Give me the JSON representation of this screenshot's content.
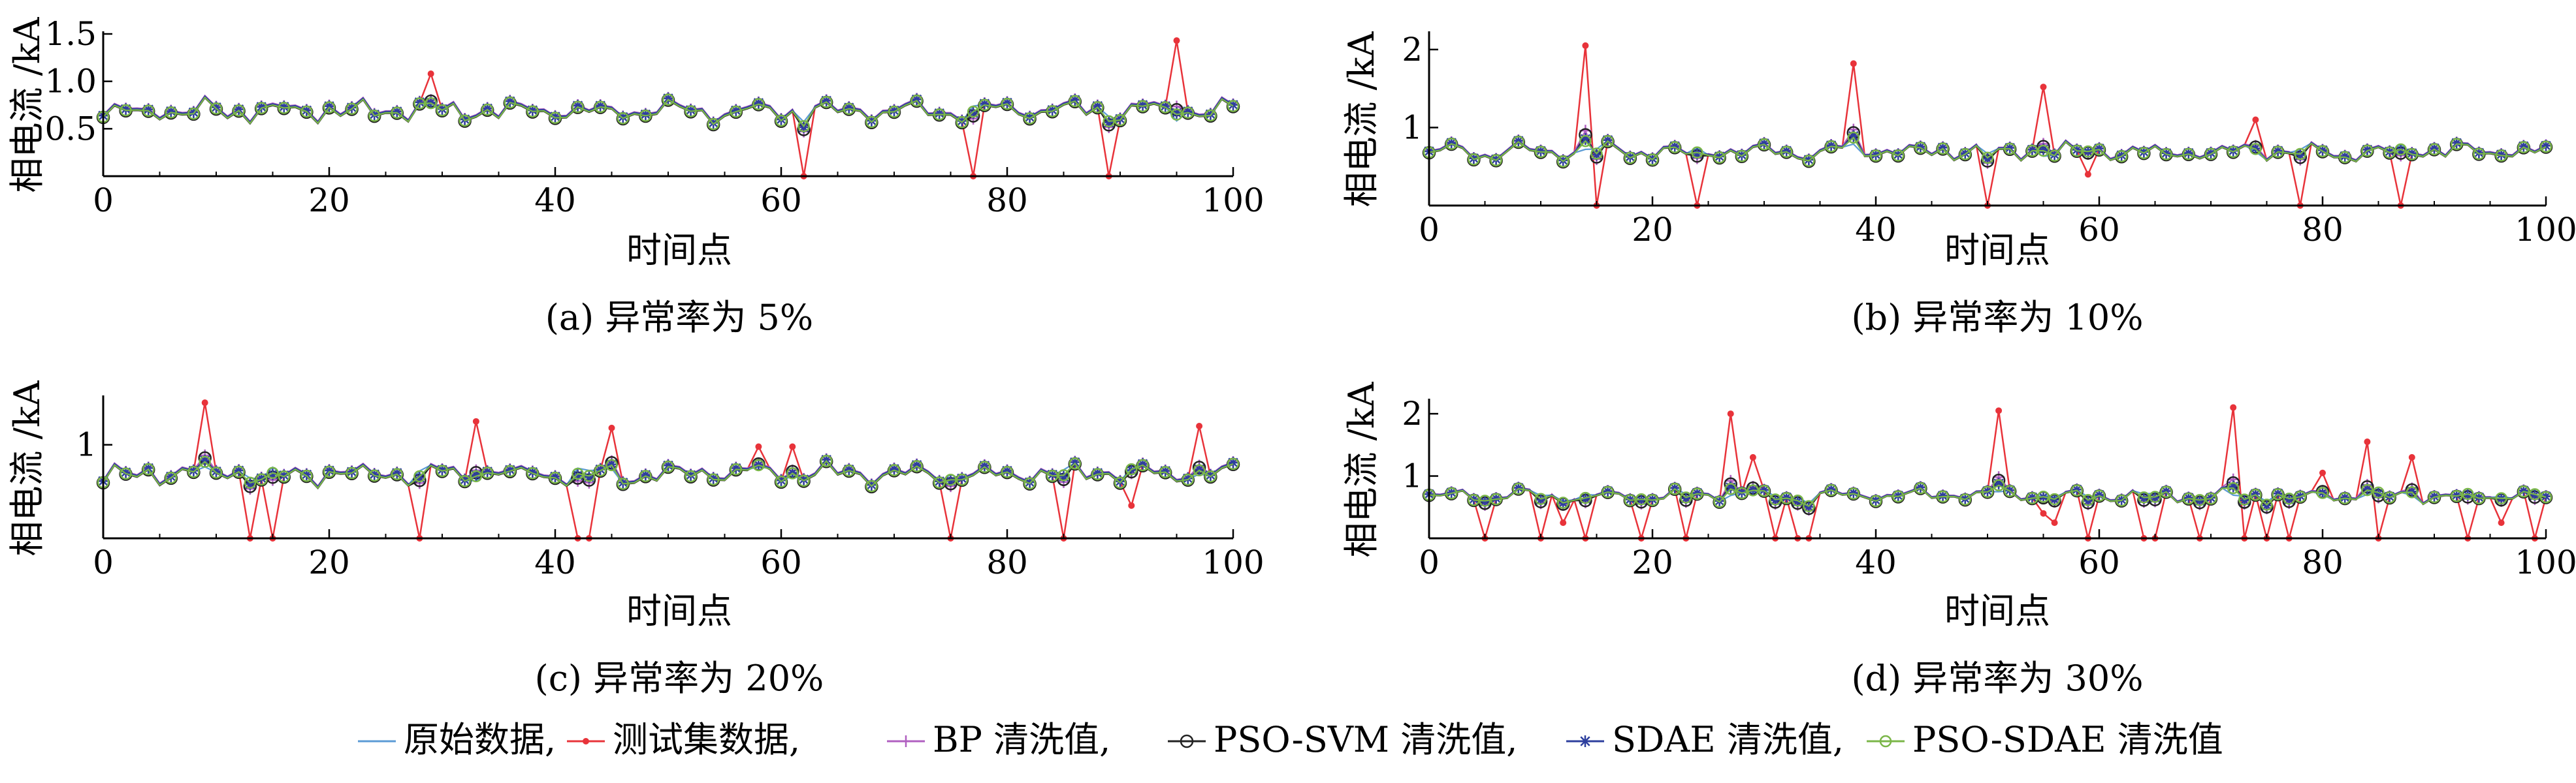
{
  "colors": {
    "original": "#5b9bd5",
    "test": "#e8333a",
    "bp": "#b05fc0",
    "psosvm": "#222222",
    "sdae": "#2d3f9e",
    "psosdae": "#7ab648"
  },
  "legend": {
    "items": [
      {
        "key": "original",
        "label": "原始数据,",
        "marker": "none"
      },
      {
        "key": "test",
        "label": "测试集数据,",
        "marker": "dot"
      },
      {
        "key": "bp",
        "label": "BP 清洗值,",
        "marker": "plus"
      },
      {
        "key": "psosvm",
        "label": "PSO-SVM 清洗值,",
        "marker": "circle"
      },
      {
        "key": "sdae",
        "label": "SDAE 清洗值,",
        "marker": "star"
      },
      {
        "key": "psosdae",
        "label": "PSO-SDAE 清洗值",
        "marker": "ocircle"
      }
    ]
  },
  "chart_data": [
    {
      "type": "line",
      "title": "(a) 异常率为 5%",
      "xlabel": "时间点",
      "ylabel": "相电流 /kA",
      "xlim": [
        0,
        100
      ],
      "ylim": [
        0,
        1.5
      ],
      "xticks": [
        0,
        20,
        40,
        60,
        80,
        100
      ],
      "yticks": [
        0.5,
        1.0,
        1.5
      ],
      "ytick_labels": [
        "0.5",
        "1.0",
        "1.5"
      ],
      "anomaly_rate": 0.05,
      "series": [
        {
          "name": "原始数据",
          "key": "original"
        },
        {
          "name": "测试集数据",
          "key": "test",
          "anomalies": [
            [
              29,
              1.08
            ],
            [
              62,
              0.0
            ],
            [
              77,
              0.0
            ],
            [
              89,
              0.0
            ],
            [
              95,
              1.43
            ]
          ]
        },
        {
          "name": "BP 清洗值",
          "key": "bp"
        },
        {
          "name": "PSO-SVM 清洗值",
          "key": "psosvm"
        },
        {
          "name": "SDAE 清洗值",
          "key": "sdae"
        },
        {
          "name": "PSO-SDAE 清洗值",
          "key": "psosdae"
        }
      ]
    },
    {
      "type": "line",
      "title": "(b) 异常率为 10%",
      "xlabel": "时间点",
      "ylabel": "相电流 /kA",
      "xlim": [
        0,
        100
      ],
      "ylim": [
        0,
        2.2
      ],
      "xticks": [
        0,
        20,
        40,
        60,
        80,
        100
      ],
      "yticks": [
        1,
        2
      ],
      "ytick_labels": [
        "1",
        "2"
      ],
      "anomaly_rate": 0.1,
      "series": [
        {
          "name": "原始数据",
          "key": "original"
        },
        {
          "name": "测试集数据",
          "key": "test",
          "anomalies": [
            [
              14,
              2.05
            ],
            [
              15,
              0.0
            ],
            [
              24,
              0.0
            ],
            [
              38,
              1.82
            ],
            [
              50,
              0.0
            ],
            [
              55,
              1.52
            ],
            [
              59,
              0.4
            ],
            [
              74,
              1.1
            ],
            [
              78,
              0.0
            ],
            [
              87,
              0.0
            ]
          ]
        },
        {
          "name": "BP 清洗值",
          "key": "bp"
        },
        {
          "name": "PSO-SVM 清洗值",
          "key": "psosvm"
        },
        {
          "name": "SDAE 清洗值",
          "key": "sdae"
        },
        {
          "name": "PSO-SDAE 清洗值",
          "key": "psosdae"
        }
      ]
    },
    {
      "type": "line",
      "title": "(c) 异常率为 20%",
      "xlabel": "时间点",
      "ylabel": "相电流 /kA",
      "xlim": [
        0,
        100
      ],
      "ylim": [
        0,
        1.5
      ],
      "xticks": [
        0,
        20,
        40,
        60,
        80,
        100
      ],
      "yticks": [
        1
      ],
      "ytick_labels": [
        "1"
      ],
      "anomaly_rate": 0.2,
      "series": [
        {
          "name": "原始数据",
          "key": "original"
        },
        {
          "name": "测试集数据",
          "key": "test",
          "anomalies": [
            [
              9,
              1.45
            ],
            [
              13,
              0.0
            ],
            [
              15,
              0.0
            ],
            [
              28,
              0.0
            ],
            [
              33,
              1.25
            ],
            [
              42,
              0.0
            ],
            [
              43,
              0.0
            ],
            [
              45,
              1.18
            ],
            [
              58,
              0.98
            ],
            [
              61,
              0.98
            ],
            [
              75,
              0.0
            ],
            [
              85,
              0.0
            ],
            [
              91,
              0.35
            ],
            [
              97,
              1.2
            ]
          ]
        },
        {
          "name": "BP 清洗值",
          "key": "bp"
        },
        {
          "name": "PSO-SVM 清洗值",
          "key": "psosvm"
        },
        {
          "name": "SDAE 清洗值",
          "key": "sdae"
        },
        {
          "name": "PSO-SDAE 清洗值",
          "key": "psosdae"
        }
      ]
    },
    {
      "type": "line",
      "title": "(d) 异常率为 30%",
      "xlabel": "时间点",
      "ylabel": "相电流 /kA",
      "xlim": [
        0,
        100
      ],
      "ylim": [
        0,
        2.2
      ],
      "xticks": [
        0,
        20,
        40,
        60,
        80,
        100
      ],
      "yticks": [
        1,
        2
      ],
      "ytick_labels": [
        "1",
        "2"
      ],
      "anomaly_rate": 0.3,
      "series": [
        {
          "name": "原始数据",
          "key": "original"
        },
        {
          "name": "测试集数据",
          "key": "test",
          "anomalies": [
            [
              5,
              0.0
            ],
            [
              10,
              0.0
            ],
            [
              12,
              0.25
            ],
            [
              14,
              0.0
            ],
            [
              19,
              0.0
            ],
            [
              23,
              0.0
            ],
            [
              27,
              2.0
            ],
            [
              29,
              1.3
            ],
            [
              31,
              0.0
            ],
            [
              33,
              0.0
            ],
            [
              34,
              0.0
            ],
            [
              51,
              2.05
            ],
            [
              55,
              0.4
            ],
            [
              56,
              0.25
            ],
            [
              59,
              0.0
            ],
            [
              64,
              0.0
            ],
            [
              65,
              0.0
            ],
            [
              69,
              0.0
            ],
            [
              72,
              2.1
            ],
            [
              73,
              0.0
            ],
            [
              75,
              0.0
            ],
            [
              77,
              0.0
            ],
            [
              80,
              1.05
            ],
            [
              84,
              1.55
            ],
            [
              85,
              0.0
            ],
            [
              88,
              1.3
            ],
            [
              93,
              0.0
            ],
            [
              96,
              0.25
            ],
            [
              99,
              0.0
            ]
          ]
        },
        {
          "name": "BP 清洗值",
          "key": "bp"
        },
        {
          "name": "PSO-SVM 清洗值",
          "key": "psosvm"
        },
        {
          "name": "SDAE 清洗值",
          "key": "sdae"
        },
        {
          "name": "PSO-SDAE 清洗值",
          "key": "psosdae"
        }
      ]
    }
  ]
}
